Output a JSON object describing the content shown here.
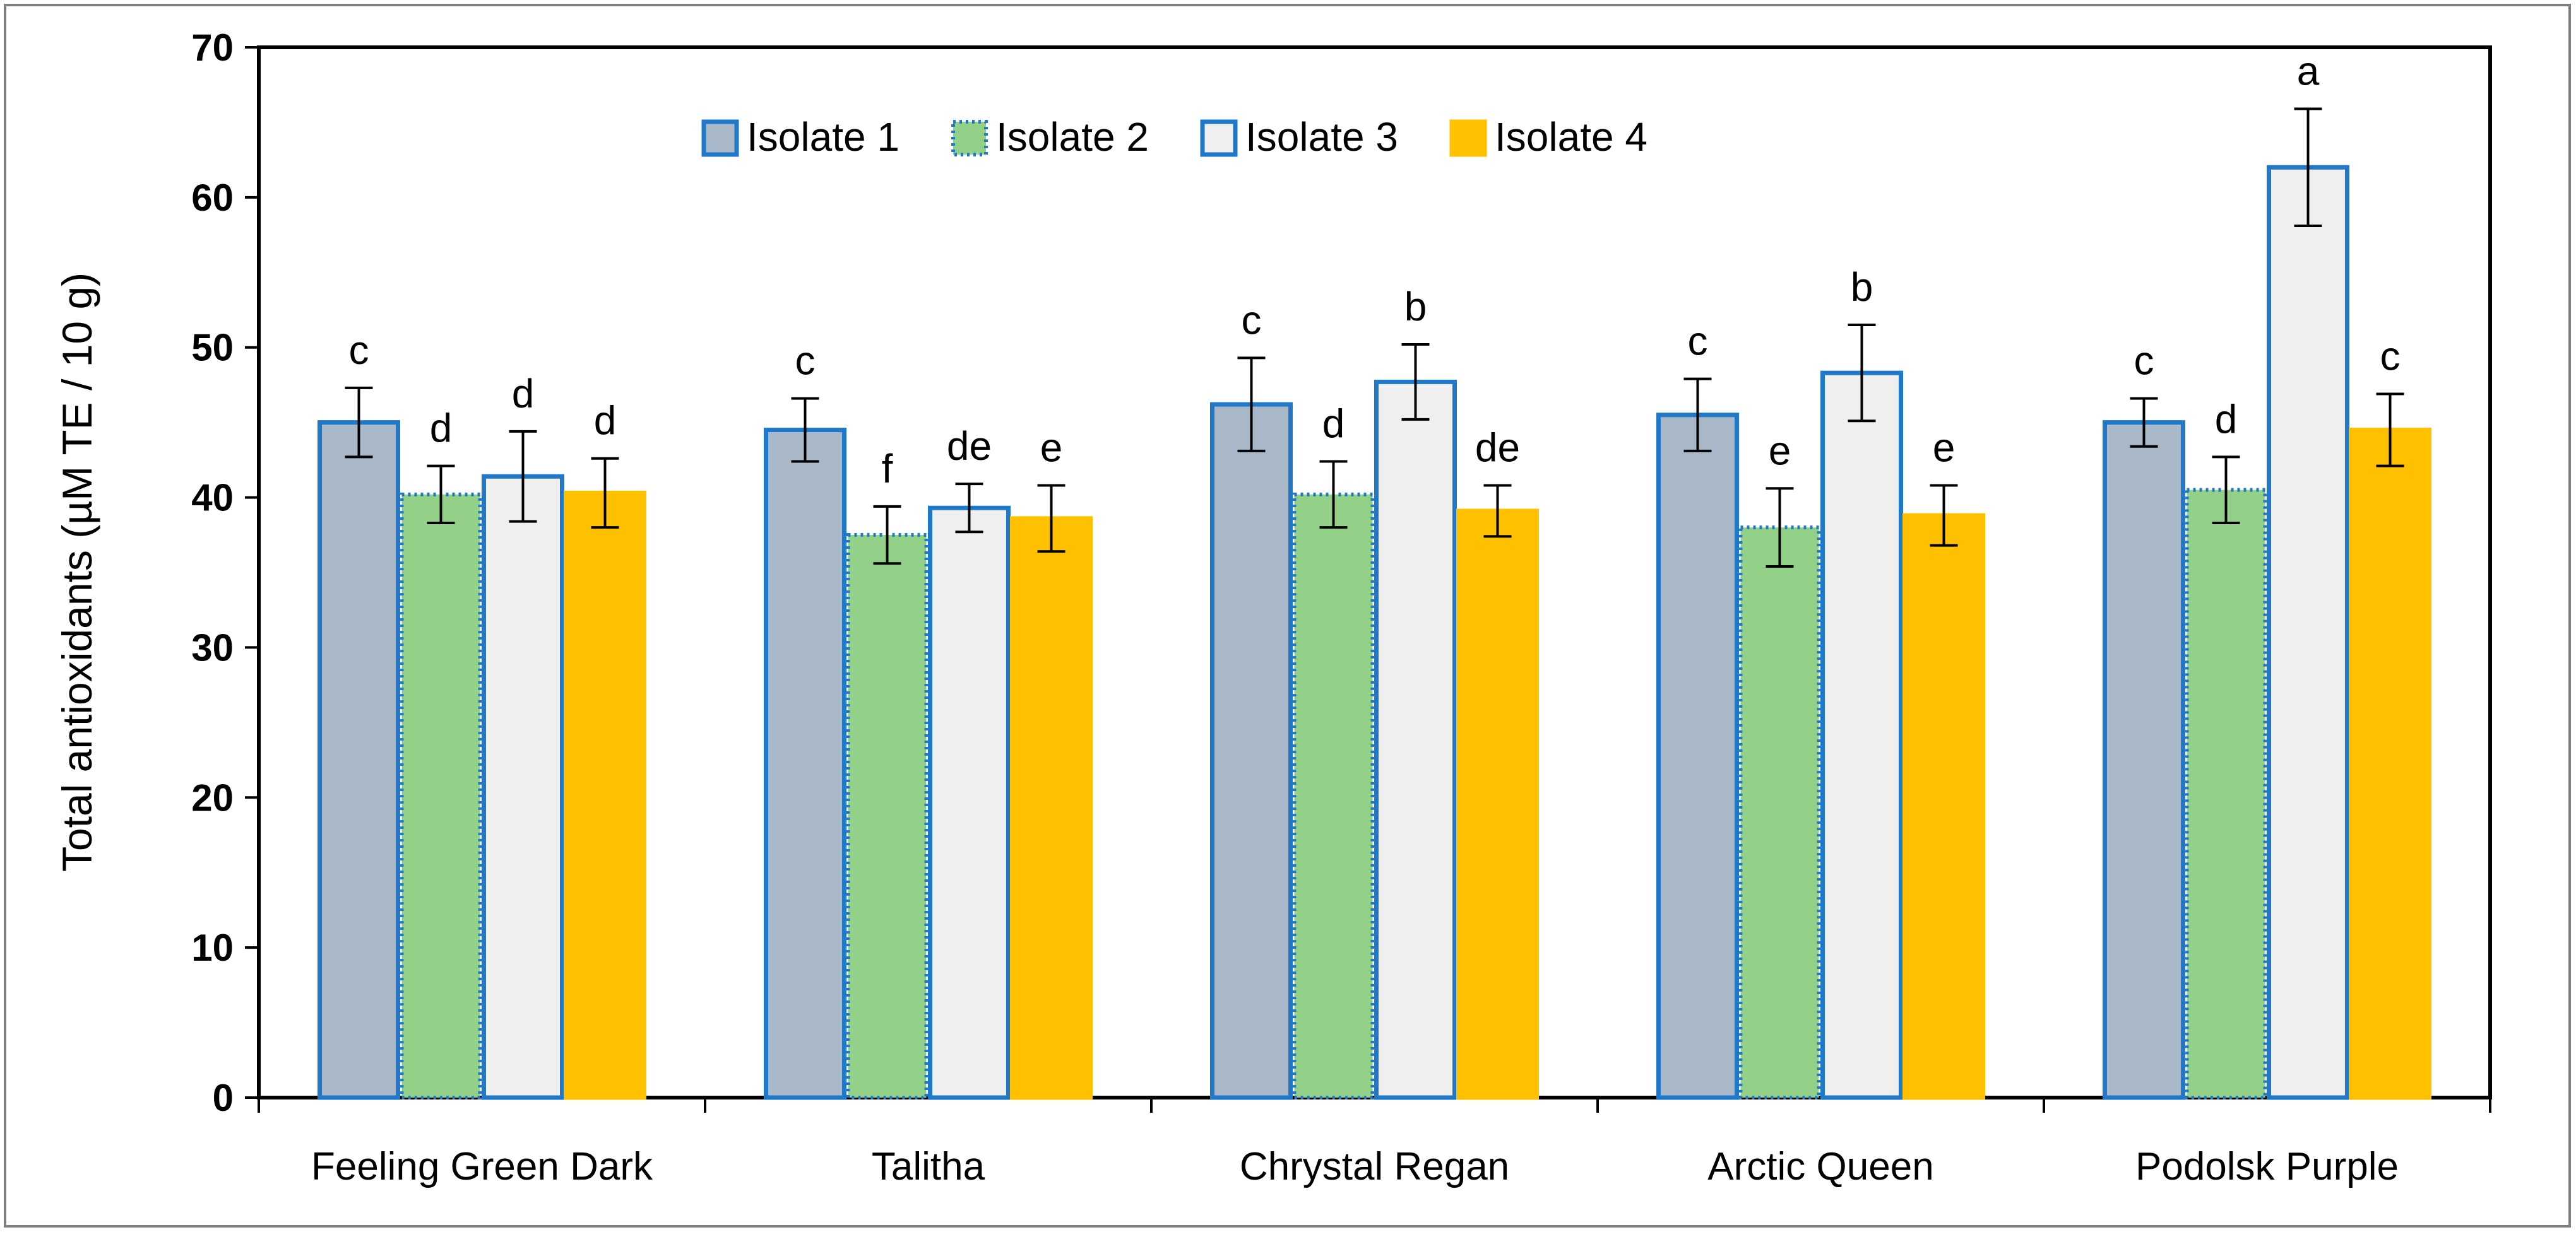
{
  "chart_data": {
    "type": "bar",
    "ylabel": "Total antioxidants (µM TE / 10 g)",
    "ylim": [
      0,
      70
    ],
    "yticks": [
      0,
      10,
      20,
      30,
      40,
      50,
      60,
      70
    ],
    "grid": false,
    "legend_position": "top",
    "categories": [
      "Feeling Green Dark",
      "Talitha",
      "Chrystal Regan",
      "Arctic Queen",
      "Podolsk Purple"
    ],
    "series": [
      {
        "name": "Isolate 1",
        "fill": "#a9b8c9",
        "stroke": "#1f78c8",
        "values": [
          45.0,
          44.5,
          46.2,
          45.5,
          45.0
        ],
        "errors": [
          2.3,
          2.1,
          3.1,
          2.4,
          1.6
        ],
        "letters": [
          "c",
          "c",
          "c",
          "c",
          "c"
        ]
      },
      {
        "name": "Isolate 2",
        "fill": "#93d188",
        "stroke": "#1f78c8",
        "values": [
          40.2,
          37.5,
          40.2,
          38.0,
          40.5
        ],
        "errors": [
          1.9,
          1.9,
          2.2,
          2.6,
          2.2
        ],
        "letters": [
          "d",
          "f",
          "d",
          "e",
          "d"
        ]
      },
      {
        "name": "Isolate 3",
        "fill": "#efefef",
        "stroke": "#1f78c8",
        "values": [
          41.4,
          39.3,
          47.7,
          48.3,
          62.0
        ],
        "errors": [
          3.0,
          1.6,
          2.5,
          3.2,
          3.9
        ],
        "letters": [
          "d",
          "de",
          "b",
          "b",
          "a"
        ]
      },
      {
        "name": "Isolate 4",
        "fill": "#ffc000",
        "stroke": "#ffc000",
        "values": [
          40.3,
          38.6,
          39.1,
          38.8,
          44.5
        ],
        "errors": [
          2.3,
          2.2,
          1.7,
          2.0,
          2.4
        ],
        "letters": [
          "d",
          "e",
          "de",
          "e",
          "c"
        ]
      }
    ]
  }
}
